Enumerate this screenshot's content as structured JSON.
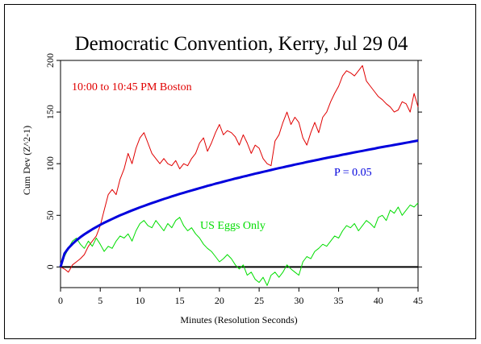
{
  "chart_data": {
    "type": "line",
    "title": "Democratic Convention, Kerry, Jul 29 04",
    "xlabel": "Minutes (Resolution Seconds)",
    "ylabel": "Cum Dev (Z^2-1)",
    "xlim": [
      0,
      45
    ],
    "ylim": [
      -20,
      200
    ],
    "xticks": [
      0,
      5,
      10,
      15,
      20,
      25,
      30,
      35,
      40,
      45
    ],
    "yticks": [
      0,
      50,
      100,
      150,
      200
    ],
    "grid": false,
    "annotations": [
      {
        "text": "10:00 to 10:45 PM Boston",
        "color": "#e00000"
      },
      {
        "text": "P = 0.05",
        "color": "#0000dd"
      },
      {
        "text": "US Eggs Only",
        "color": "#00dd00"
      }
    ],
    "series": [
      {
        "color": "#e00000",
        "x": [
          0,
          0.5,
          1,
          1.5,
          2,
          2.5,
          3,
          3.5,
          4,
          4.5,
          5,
          5.5,
          6,
          6.5,
          7,
          7.5,
          8,
          8.5,
          9,
          9.5,
          10,
          10.5,
          11,
          11.5,
          12,
          12.5,
          13,
          13.5,
          14,
          14.5,
          15,
          15.5,
          16,
          16.5,
          17,
          17.5,
          18,
          18.5,
          19,
          19.5,
          20,
          20.5,
          21,
          21.5,
          22,
          22.5,
          23,
          23.5,
          24,
          24.5,
          25,
          25.5,
          26,
          26.5,
          27,
          27.5,
          28,
          28.5,
          29,
          29.5,
          30,
          30.5,
          31,
          31.5,
          32,
          32.5,
          33,
          33.5,
          34,
          34.5,
          35,
          35.5,
          36,
          36.5,
          37,
          37.5,
          38,
          38.5,
          39,
          39.5,
          40,
          40.5,
          41,
          41.5,
          42,
          42.5,
          43,
          43.5,
          44,
          44.5,
          45
        ],
        "values": [
          0,
          -2,
          -5,
          2,
          5,
          8,
          12,
          20,
          25,
          30,
          40,
          55,
          70,
          75,
          70,
          85,
          95,
          110,
          100,
          115,
          125,
          130,
          120,
          110,
          105,
          100,
          105,
          100,
          98,
          103,
          95,
          100,
          98,
          105,
          110,
          120,
          125,
          112,
          120,
          130,
          138,
          128,
          132,
          130,
          126,
          118,
          128,
          120,
          110,
          118,
          115,
          105,
          100,
          98,
          122,
          128,
          140,
          150,
          138,
          145,
          140,
          125,
          118,
          130,
          140,
          130,
          145,
          150,
          160,
          168,
          175,
          185,
          190,
          188,
          185,
          190,
          195,
          180,
          175,
          170,
          165,
          162,
          158,
          155,
          150,
          152,
          160,
          158,
          150,
          168,
          155
        ]
      },
      {
        "color": "#00dd00",
        "x": [
          0,
          0.5,
          1,
          1.5,
          2,
          2.5,
          3,
          3.5,
          4,
          4.5,
          5,
          5.5,
          6,
          6.5,
          7,
          7.5,
          8,
          8.5,
          9,
          9.5,
          10,
          10.5,
          11,
          11.5,
          12,
          12.5,
          13,
          13.5,
          14,
          14.5,
          15,
          15.5,
          16,
          16.5,
          17,
          17.5,
          18,
          18.5,
          19,
          19.5,
          20,
          20.5,
          21,
          21.5,
          22,
          22.5,
          23,
          23.5,
          24,
          24.5,
          25,
          25.5,
          26,
          26.5,
          27,
          27.5,
          28,
          28.5,
          29,
          29.5,
          30,
          30.5,
          31,
          31.5,
          32,
          32.5,
          33,
          33.5,
          34,
          34.5,
          35,
          35.5,
          36,
          36.5,
          37,
          37.5,
          38,
          38.5,
          39,
          39.5,
          40,
          40.5,
          41,
          41.5,
          42,
          42.5,
          43,
          43.5,
          44,
          44.5,
          45
        ],
        "values": [
          0,
          10,
          18,
          25,
          28,
          22,
          18,
          25,
          20,
          28,
          22,
          15,
          20,
          18,
          25,
          30,
          28,
          32,
          25,
          35,
          42,
          45,
          40,
          38,
          45,
          40,
          35,
          42,
          38,
          45,
          48,
          40,
          35,
          38,
          32,
          28,
          22,
          18,
          15,
          10,
          5,
          8,
          12,
          8,
          2,
          -2,
          2,
          -8,
          -5,
          -12,
          -15,
          -10,
          -18,
          -8,
          -5,
          -10,
          -5,
          2,
          -2,
          -5,
          -8,
          5,
          10,
          8,
          15,
          18,
          22,
          20,
          25,
          30,
          28,
          35,
          40,
          38,
          42,
          35,
          40,
          45,
          42,
          38,
          48,
          50,
          45,
          55,
          52,
          58,
          50,
          55,
          60,
          58,
          62
        ]
      },
      {
        "name": "P = 0.05",
        "color": "#0000dd",
        "x": [
          0,
          0.5,
          1,
          1.5,
          2,
          2.5,
          3,
          3.5,
          4,
          4.5,
          5,
          5.5,
          6,
          6.5,
          7,
          7.5,
          8,
          8.5,
          9,
          9.5,
          10,
          10.5,
          11,
          11.5,
          12,
          12.5,
          13,
          13.5,
          14,
          14.5,
          15,
          15.5,
          16,
          16.5,
          17,
          17.5,
          18,
          18.5,
          19,
          19.5,
          20,
          20.5,
          21,
          21.5,
          22,
          22.5,
          23,
          23.5,
          24,
          24.5,
          25,
          25.5,
          26,
          26.5,
          27,
          27.5,
          28,
          28.5,
          29,
          29.5,
          30,
          30.5,
          31,
          31.5,
          32,
          32.5,
          33,
          33.5,
          34,
          34.5,
          35,
          35.5,
          36,
          36.5,
          37,
          37.5,
          38,
          38.5,
          39,
          39.5,
          40,
          40.5,
          41,
          41.5,
          42,
          42.5,
          43,
          43.5,
          44,
          44.5,
          45
        ],
        "values": [
          0,
          12.9,
          18.2,
          22.3,
          25.8,
          28.8,
          31.6,
          34.1,
          36.5,
          38.7,
          40.8,
          42.8,
          44.7,
          46.5,
          48.3,
          50.0,
          51.6,
          53.2,
          54.7,
          56.2,
          57.7,
          59.1,
          60.5,
          61.8,
          63.2,
          64.5,
          65.8,
          67.0,
          68.3,
          69.5,
          70.7,
          71.8,
          73.0,
          74.1,
          75.2,
          76.3,
          77.4,
          78.5,
          79.5,
          80.6,
          81.6,
          82.6,
          83.6,
          84.6,
          85.6,
          86.5,
          87.5,
          88.4,
          89.4,
          90.3,
          91.2,
          92.1,
          93.0,
          93.9,
          94.8,
          95.7,
          96.5,
          97.4,
          98.2,
          99.1,
          99.9,
          100.7,
          101.6,
          102.4,
          103.2,
          104.0,
          104.8,
          105.6,
          106.4,
          107.1,
          107.9,
          108.7,
          109.4,
          110.2,
          111.0,
          111.7,
          112.4,
          113.2,
          113.9,
          114.6,
          115.4,
          116.1,
          116.8,
          117.5,
          118.2,
          118.9,
          119.6,
          120.3,
          121.0,
          121.7,
          122.4
        ]
      }
    ]
  }
}
